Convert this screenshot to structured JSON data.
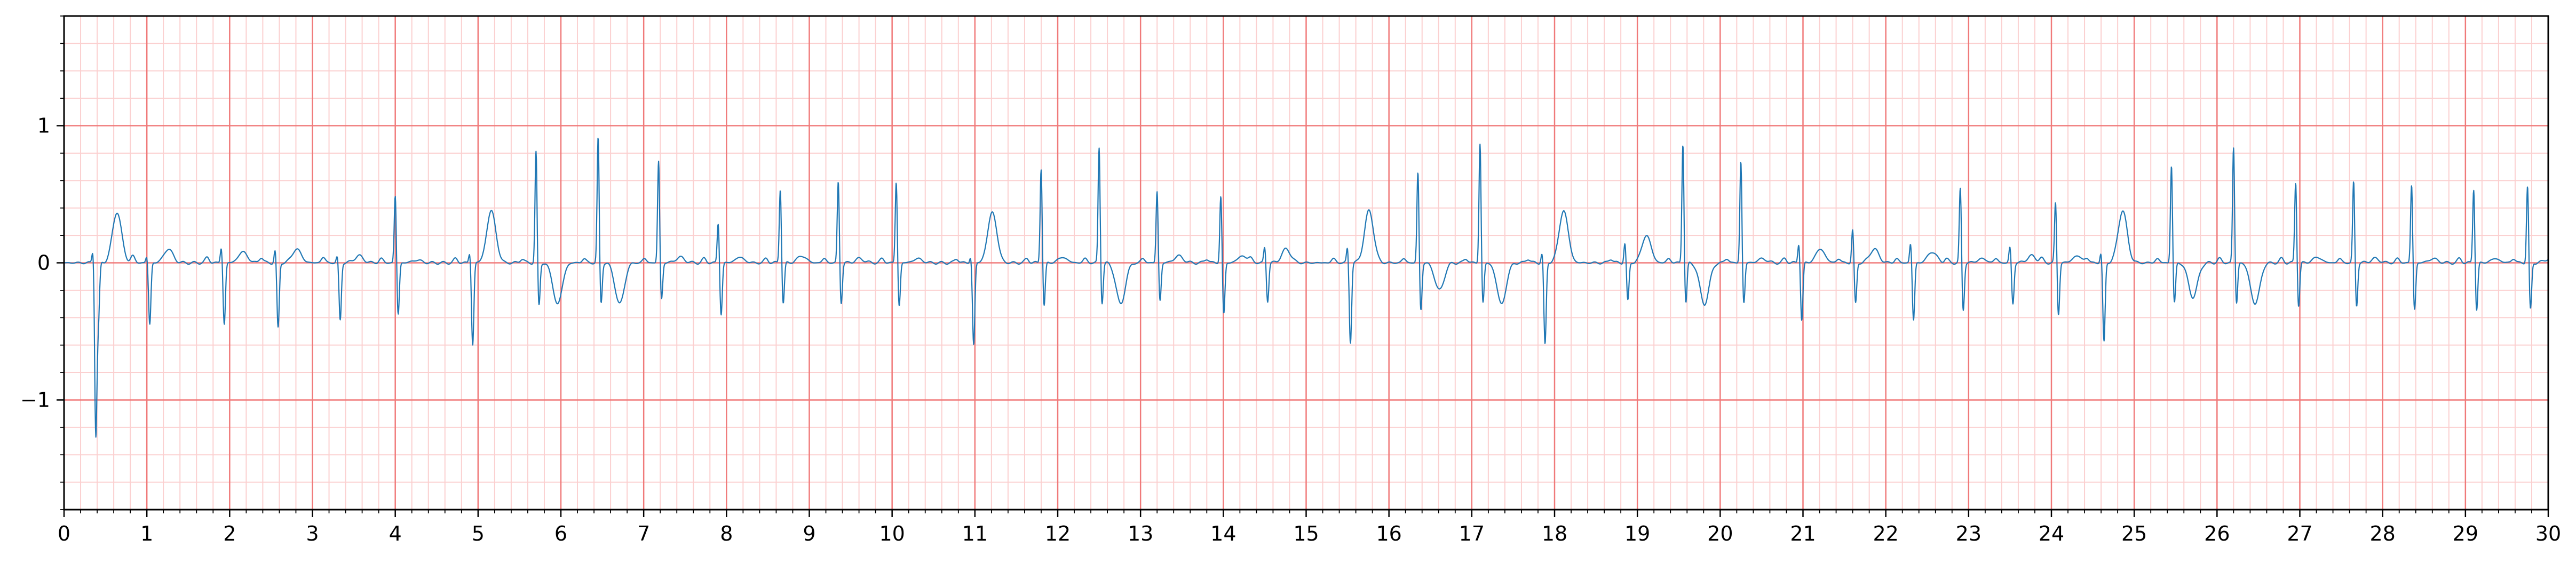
{
  "chart_data": {
    "type": "line",
    "title": "",
    "xlabel": "",
    "ylabel": "",
    "xlim": [
      0,
      30
    ],
    "ylim": [
      -1.8,
      1.8
    ],
    "x_ticks": [
      0,
      1,
      2,
      3,
      4,
      5,
      6,
      7,
      8,
      9,
      10,
      11,
      12,
      13,
      14,
      15,
      16,
      17,
      18,
      19,
      20,
      21,
      22,
      23,
      24,
      25,
      26,
      27,
      28,
      29,
      30
    ],
    "x_tick_labels": [
      "0",
      "1",
      "2",
      "3",
      "4",
      "5",
      "6",
      "7",
      "8",
      "9",
      "10",
      "11",
      "12",
      "13",
      "14",
      "15",
      "16",
      "17",
      "18",
      "19",
      "20",
      "21",
      "22",
      "23",
      "24",
      "25",
      "26",
      "27",
      "28",
      "29",
      "30"
    ],
    "y_ticks": [
      -1,
      0,
      1
    ],
    "y_tick_labels": [
      "−1",
      "0",
      "1"
    ],
    "grid": {
      "major": true,
      "minor": true,
      "major_x_step": 1,
      "major_y_step": 1,
      "minor_x_step": 0.2,
      "minor_y_step": 0.2
    },
    "colors": {
      "major_grid": "#f07a7a",
      "minor_grid": "#fbd0d0",
      "trace": "#1f77b4",
      "axes": "#000000"
    },
    "series": [
      {
        "beats": [
          {
            "t": 0.35,
            "r": 0.1,
            "s": -0.95,
            "t_wave": 0.0,
            "p_wave": 0.0
          },
          {
            "t": 0.38,
            "r": -0.3,
            "s": -0.4,
            "t_wave": 0.37,
            "p_wave": 0.0
          },
          {
            "t": 1.0,
            "r": 0.05,
            "s": -0.45,
            "t_wave": 0.1,
            "p_wave": 0.05
          },
          {
            "t": 1.9,
            "r": 0.12,
            "s": -0.45,
            "t_wave": 0.08,
            "p_wave": 0.04
          },
          {
            "t": 2.55,
            "r": 0.1,
            "s": -0.48,
            "t_wave": 0.1,
            "p_wave": 0.04
          },
          {
            "t": 3.3,
            "r": 0.05,
            "s": -0.42,
            "t_wave": 0.05,
            "p_wave": 0.04
          },
          {
            "t": 4.0,
            "r": 0.5,
            "s": -0.38,
            "t_wave": 0.02,
            "p_wave": 0.03
          },
          {
            "t": 4.9,
            "r": 0.08,
            "s": -0.6,
            "t_wave": 0.38,
            "p_wave": 0.03
          },
          {
            "t": 5.7,
            "r": 0.82,
            "s": -0.32,
            "t_wave": -0.3,
            "p_wave": 0.03
          },
          {
            "t": 6.45,
            "r": 0.92,
            "s": -0.3,
            "t_wave": -0.3,
            "p_wave": 0.03
          },
          {
            "t": 7.18,
            "r": 0.75,
            "s": -0.27,
            "t_wave": 0.04,
            "p_wave": 0.03
          },
          {
            "t": 7.9,
            "r": 0.3,
            "s": -0.38,
            "t_wave": 0.04,
            "p_wave": 0.03
          },
          {
            "t": 8.65,
            "r": 0.55,
            "s": -0.3,
            "t_wave": 0.05,
            "p_wave": 0.03
          },
          {
            "t": 9.35,
            "r": 0.6,
            "s": -0.3,
            "t_wave": 0.03,
            "p_wave": 0.03
          },
          {
            "t": 10.05,
            "r": 0.6,
            "s": -0.32,
            "t_wave": 0.03,
            "p_wave": 0.03
          },
          {
            "t": 10.95,
            "r": 0.05,
            "s": -0.6,
            "t_wave": 0.37,
            "p_wave": 0.03
          },
          {
            "t": 11.8,
            "r": 0.7,
            "s": -0.32,
            "t_wave": 0.04,
            "p_wave": 0.03
          },
          {
            "t": 12.5,
            "r": 0.85,
            "s": -0.3,
            "t_wave": -0.3,
            "p_wave": 0.03
          },
          {
            "t": 13.2,
            "r": 0.53,
            "s": -0.28,
            "t_wave": 0.05,
            "p_wave": 0.03
          },
          {
            "t": 13.97,
            "r": 0.5,
            "s": -0.38,
            "t_wave": 0.05,
            "p_wave": 0.03
          },
          {
            "t": 14.5,
            "r": 0.12,
            "s": -0.28,
            "t_wave": 0.1,
            "p_wave": 0.03
          },
          {
            "t": 15.5,
            "r": 0.12,
            "s": -0.58,
            "t_wave": 0.38,
            "p_wave": 0.03
          },
          {
            "t": 16.35,
            "r": 0.67,
            "s": -0.35,
            "t_wave": -0.2,
            "p_wave": 0.03
          },
          {
            "t": 17.1,
            "r": 0.88,
            "s": -0.3,
            "t_wave": -0.3,
            "p_wave": 0.03
          },
          {
            "t": 17.85,
            "r": 0.08,
            "s": -0.6,
            "t_wave": 0.38,
            "p_wave": 0.03
          },
          {
            "t": 18.85,
            "r": 0.15,
            "s": -0.28,
            "t_wave": 0.2,
            "p_wave": 0.03
          },
          {
            "t": 19.55,
            "r": 0.88,
            "s": -0.3,
            "t_wave": -0.3,
            "p_wave": 0.03
          },
          {
            "t": 20.25,
            "r": 0.75,
            "s": -0.3,
            "t_wave": 0.03,
            "p_wave": 0.03
          },
          {
            "t": 20.95,
            "r": 0.15,
            "s": -0.42,
            "t_wave": 0.1,
            "p_wave": 0.03
          },
          {
            "t": 21.6,
            "r": 0.25,
            "s": -0.3,
            "t_wave": 0.1,
            "p_wave": 0.03
          },
          {
            "t": 22.3,
            "r": 0.15,
            "s": -0.42,
            "t_wave": 0.08,
            "p_wave": 0.03
          },
          {
            "t": 22.9,
            "r": 0.55,
            "s": -0.35,
            "t_wave": 0.03,
            "p_wave": 0.03
          },
          {
            "t": 23.5,
            "r": 0.12,
            "s": -0.3,
            "t_wave": 0.05,
            "p_wave": 0.03
          },
          {
            "t": 24.05,
            "r": 0.45,
            "s": -0.38,
            "t_wave": 0.05,
            "p_wave": 0.03
          },
          {
            "t": 24.6,
            "r": 0.08,
            "s": -0.58,
            "t_wave": 0.38,
            "p_wave": 0.03
          },
          {
            "t": 25.45,
            "r": 0.72,
            "s": -0.3,
            "t_wave": -0.25,
            "p_wave": 0.03
          },
          {
            "t": 26.2,
            "r": 0.85,
            "s": -0.3,
            "t_wave": -0.3,
            "p_wave": 0.03
          },
          {
            "t": 26.95,
            "r": 0.6,
            "s": -0.32,
            "t_wave": 0.04,
            "p_wave": 0.03
          },
          {
            "t": 27.65,
            "r": 0.6,
            "s": -0.32,
            "t_wave": 0.03,
            "p_wave": 0.03
          },
          {
            "t": 28.35,
            "r": 0.58,
            "s": -0.35,
            "t_wave": 0.03,
            "p_wave": 0.03
          },
          {
            "t": 29.1,
            "r": 0.55,
            "s": -0.35,
            "t_wave": 0.03,
            "p_wave": 0.03
          },
          {
            "t": 29.75,
            "r": 0.57,
            "s": -0.35,
            "t_wave": 0.03,
            "p_wave": 0.03
          }
        ]
      }
    ]
  }
}
